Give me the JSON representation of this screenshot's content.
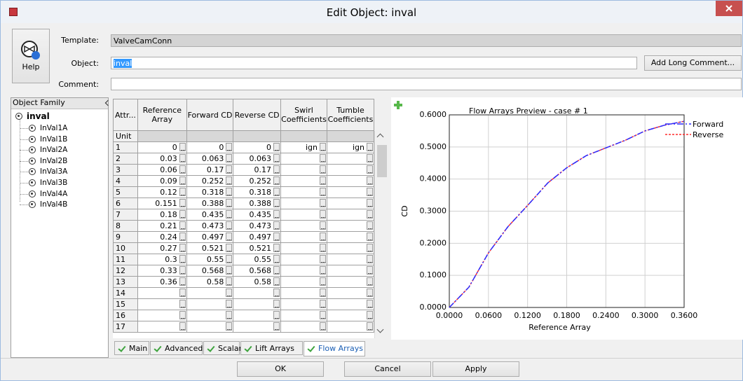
{
  "window": {
    "title": "Edit Object: inval"
  },
  "form": {
    "template_label": "Template:",
    "template": "ValveCamConn",
    "object_label": "Object:",
    "object": "inval",
    "comment_label": "Comment:",
    "help": "Help",
    "add_long_comment": "Add Long Comment..."
  },
  "tree": {
    "header": "Object Family",
    "root": "inval",
    "children": [
      "InVal1A",
      "InVal1B",
      "InVal2A",
      "InVal2B",
      "InVal3A",
      "InVal3B",
      "InVal4A",
      "InVal4B"
    ]
  },
  "table": {
    "columns": [
      "Attr...",
      "Reference Array",
      "Forward CD",
      "Reverse CD",
      "Swirl Coefficients",
      "Tumble Coefficients"
    ],
    "unit_label": "Unit",
    "rows": [
      [
        1,
        0,
        0,
        0,
        "ign",
        "ign"
      ],
      [
        2,
        0.03,
        0.063,
        0.063
      ],
      [
        3,
        0.06,
        0.17,
        0.17
      ],
      [
        4,
        0.09,
        0.252,
        0.252
      ],
      [
        5,
        0.12,
        0.318,
        0.318
      ],
      [
        6,
        0.151,
        0.388,
        0.388
      ],
      [
        7,
        0.18,
        0.435,
        0.435
      ],
      [
        8,
        0.21,
        0.473,
        0.473
      ],
      [
        9,
        0.24,
        0.497,
        0.497
      ],
      [
        10,
        0.27,
        0.521,
        0.521
      ],
      [
        11,
        0.3,
        0.55,
        0.55
      ],
      [
        12,
        0.33,
        0.568,
        0.568
      ],
      [
        13,
        0.36,
        0.58,
        0.58
      ],
      [
        14
      ],
      [
        15
      ],
      [
        16
      ],
      [
        17
      ]
    ]
  },
  "tabs": [
    "Main",
    "Advanced",
    "Scalars",
    "Lift Arrays",
    "Flow Arrays"
  ],
  "active_tab": 4,
  "chart": {
    "type": "line",
    "title": "Flow Arrays Preview - case # 1",
    "x_label": "Reference Array",
    "y_label": "CD",
    "xlim": [
      0,
      0.36
    ],
    "ylim": [
      0,
      0.6
    ],
    "grid": true,
    "xticks": [
      {
        "value": 0,
        "label": "0.0000"
      },
      {
        "value": 0.06,
        "label": "0.0600"
      },
      {
        "value": 0.12,
        "label": "0.1200"
      },
      {
        "value": 0.18,
        "label": "0.1800"
      },
      {
        "value": 0.24,
        "label": "0.2400"
      },
      {
        "value": 0.3,
        "label": "0.3000"
      },
      {
        "value": 0.36,
        "label": "0.3600"
      }
    ],
    "yticks": [
      {
        "value": 0,
        "label": "0.0000"
      },
      {
        "value": 0.1,
        "label": "0.1000"
      },
      {
        "value": 0.2,
        "label": "0.2000"
      },
      {
        "value": 0.3,
        "label": "0.3000"
      },
      {
        "value": 0.4,
        "label": "0.4000"
      },
      {
        "value": 0.5,
        "label": "0.5000"
      },
      {
        "value": 0.6,
        "label": "0.6000"
      }
    ],
    "series": [
      {
        "name": "Forward",
        "color": "#2b2bff"
      },
      {
        "name": "Reverse",
        "color": "#ff2b2b"
      }
    ]
  },
  "buttons": [
    "OK",
    "Cancel",
    "Apply"
  ]
}
